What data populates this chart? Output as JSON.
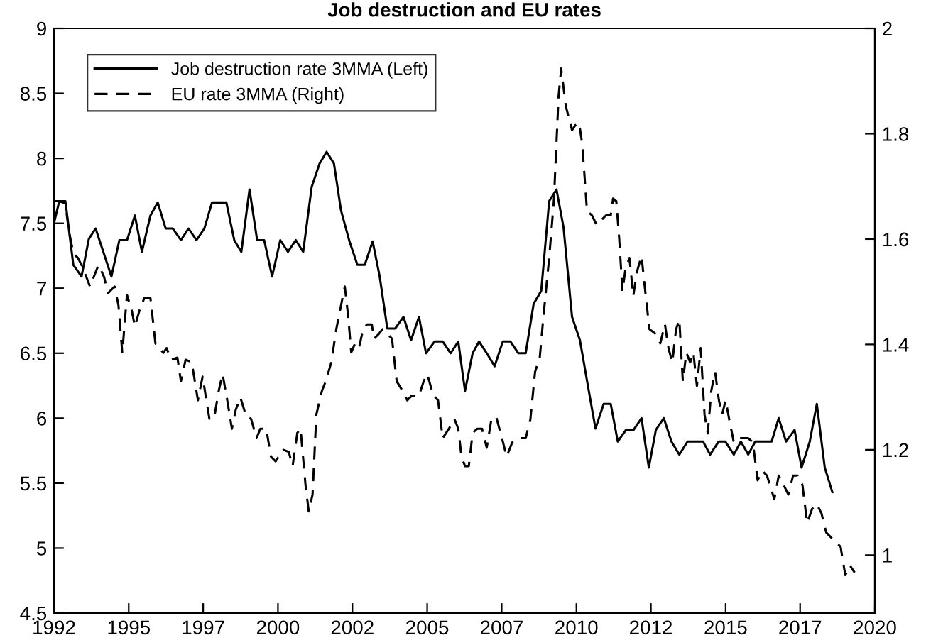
{
  "chart_data": {
    "type": "line",
    "title": "Job destruction and EU rates",
    "xlim": [
      1992,
      2020
    ],
    "xticks": [
      {
        "value": 1992,
        "label": "1992"
      },
      {
        "value": 1994.55,
        "label": "1995"
      },
      {
        "value": 1997.09,
        "label": "1997"
      },
      {
        "value": 1999.64,
        "label": "2000"
      },
      {
        "value": 2002.18,
        "label": "2002"
      },
      {
        "value": 2004.73,
        "label": "2005"
      },
      {
        "value": 2007.27,
        "label": "2007"
      },
      {
        "value": 2009.82,
        "label": "2010"
      },
      {
        "value": 2012.36,
        "label": "2012"
      },
      {
        "value": 2014.91,
        "label": "2015"
      },
      {
        "value": 2017.45,
        "label": "2017"
      },
      {
        "value": 2020,
        "label": "2020"
      }
    ],
    "ylim": [
      4.5,
      9
    ],
    "yticks": [
      4.5,
      5,
      5.5,
      6,
      6.5,
      7,
      7.5,
      8,
      8.5,
      9
    ],
    "y2lim": [
      0.89,
      2
    ],
    "y2ticks": [
      1,
      1.2,
      1.4,
      1.6,
      1.8,
      2
    ],
    "legend": "top left",
    "grid": false,
    "series": [
      {
        "name": "Job destruction rate 3MMA (Left)",
        "color": "#000000",
        "line_style": "solid",
        "x": [
          1992.0,
          1992.18,
          1992.39,
          1992.66,
          1992.94,
          1993.19,
          1993.42,
          1993.96,
          1994.23,
          1994.49,
          1994.76,
          1995.0,
          1995.29,
          1995.54,
          1995.81,
          1996.05,
          1996.33,
          1996.59,
          1996.86,
          1997.13,
          1997.39,
          1997.88,
          1998.15,
          1998.39,
          1998.67,
          1998.93,
          1999.17,
          1999.44,
          1999.72,
          1999.98,
          2000.25,
          2000.5,
          2000.79,
          2001.06,
          2001.3,
          2001.55,
          2001.79,
          2002.08,
          2002.35,
          2002.6,
          2002.87,
          2003.11,
          2003.37,
          2003.64,
          2003.92,
          2004.18,
          2004.45,
          2004.69,
          2004.98,
          2005.26,
          2005.53,
          2005.79,
          2006.02,
          2006.28,
          2006.5,
          2006.76,
          2007.03,
          2007.31,
          2007.57,
          2007.84,
          2008.09,
          2008.36,
          2008.62,
          2008.89,
          2009.14,
          2009.38,
          2009.67,
          2009.94,
          2010.18,
          2010.47,
          2010.75,
          2010.99,
          2011.23,
          2011.51,
          2011.77,
          2012.04,
          2012.29,
          2012.53,
          2012.8,
          2013.06,
          2013.33,
          2013.61,
          2014.14,
          2014.38,
          2014.67,
          2014.9,
          2015.19,
          2015.43,
          2015.68,
          2015.92,
          2016.48,
          2016.72,
          2016.97,
          2017.26,
          2017.5,
          2017.78,
          2018.02,
          2018.29,
          2018.55
        ],
        "values": [
          7.5,
          7.67,
          7.67,
          7.18,
          7.09,
          7.38,
          7.46,
          7.09,
          7.37,
          7.37,
          7.56,
          7.28,
          7.56,
          7.66,
          7.46,
          7.46,
          7.37,
          7.46,
          7.37,
          7.46,
          7.66,
          7.66,
          7.37,
          7.28,
          7.76,
          7.37,
          7.37,
          7.09,
          7.37,
          7.28,
          7.37,
          7.28,
          7.78,
          7.96,
          8.05,
          7.96,
          7.6,
          7.36,
          7.18,
          7.18,
          7.36,
          7.09,
          6.69,
          6.69,
          6.78,
          6.6,
          6.78,
          6.5,
          6.59,
          6.59,
          6.5,
          6.59,
          6.21,
          6.5,
          6.59,
          6.5,
          6.4,
          6.59,
          6.59,
          6.5,
          6.5,
          6.88,
          6.98,
          7.67,
          7.76,
          7.47,
          6.78,
          6.6,
          6.29,
          5.92,
          6.11,
          6.11,
          5.82,
          5.91,
          5.91,
          6.0,
          5.62,
          5.91,
          6.0,
          5.82,
          5.72,
          5.82,
          5.82,
          5.72,
          5.82,
          5.82,
          5.72,
          5.82,
          5.72,
          5.82,
          5.82,
          6.0,
          5.82,
          5.91,
          5.62,
          5.82,
          6.11,
          5.62,
          5.43
        ]
      },
      {
        "name": "EU rate 3MMA (Right)",
        "color": "#000000",
        "line_style": "dashed",
        "axis": "y2",
        "x": [
          1992.0,
          1992.18,
          1992.39,
          1992.5,
          1992.66,
          1992.82,
          1992.98,
          1993.23,
          1993.52,
          1993.71,
          1993.84,
          1994.07,
          1994.2,
          1994.33,
          1994.49,
          1994.65,
          1994.76,
          1994.92,
          1995.08,
          1995.29,
          1995.46,
          1995.73,
          1995.84,
          1996.0,
          1996.21,
          1996.33,
          1996.49,
          1996.7,
          1996.91,
          1997.07,
          1997.3,
          1997.46,
          1997.62,
          1997.75,
          1997.91,
          1998.07,
          1998.2,
          1998.36,
          1998.56,
          1998.72,
          1998.91,
          1999.04,
          1999.24,
          1999.4,
          1999.56,
          1999.82,
          2000.01,
          2000.14,
          2000.3,
          2000.41,
          2000.58,
          2000.69,
          2000.82,
          2000.95,
          2001.14,
          2001.27,
          2001.46,
          2001.63,
          2001.92,
          2002.03,
          2002.14,
          2002.27,
          2002.4,
          2002.51,
          2002.67,
          2002.84,
          2002.92,
          2003.08,
          2003.21,
          2003.37,
          2003.53,
          2003.69,
          2003.89,
          2004.05,
          2004.21,
          2004.45,
          2004.61,
          2004.73,
          2004.94,
          2005.1,
          2005.26,
          2005.47,
          2005.66,
          2005.79,
          2005.9,
          2006.02,
          2006.15,
          2006.28,
          2006.44,
          2006.6,
          2006.76,
          2006.92,
          2007.08,
          2007.28,
          2007.44,
          2007.63,
          2007.84,
          2008.09,
          2008.25,
          2008.41,
          2008.57,
          2008.7,
          2008.89,
          2009.05,
          2009.21,
          2009.3,
          2009.46,
          2009.67,
          2009.78,
          2009.91,
          2010.02,
          2010.18,
          2010.35,
          2010.51,
          2010.67,
          2010.83,
          2010.99,
          2011.07,
          2011.18,
          2011.28,
          2011.39,
          2011.5,
          2011.63,
          2011.76,
          2011.88,
          2012.04,
          2012.15,
          2012.31,
          2012.52,
          2012.68,
          2012.84,
          2012.96,
          2013.09,
          2013.22,
          2013.33,
          2013.45,
          2013.57,
          2013.7,
          2013.81,
          2013.93,
          2014.06,
          2014.19,
          2014.3,
          2014.42,
          2014.55,
          2014.68,
          2014.79,
          2014.91,
          2015.03,
          2015.19,
          2015.35,
          2015.51,
          2015.68,
          2015.84,
          2016.0,
          2016.16,
          2016.32,
          2016.57,
          2016.72,
          2016.89,
          2017.05,
          2017.21,
          2017.37,
          2017.53,
          2017.69,
          2017.86,
          2018.02,
          2018.18,
          2018.34,
          2018.5,
          2018.66,
          2018.83,
          2018.99,
          2019.07,
          2019.15,
          2019.31
        ],
        "values": [
          1.672,
          1.672,
          1.668,
          1.618,
          1.573,
          1.564,
          1.546,
          1.51,
          1.551,
          1.528,
          1.497,
          1.51,
          1.474,
          1.384,
          1.494,
          1.465,
          1.434,
          1.465,
          1.488,
          1.488,
          1.402,
          1.384,
          1.393,
          1.371,
          1.375,
          1.33,
          1.371,
          1.366,
          1.294,
          1.339,
          1.259,
          1.259,
          1.312,
          1.344,
          1.294,
          1.24,
          1.276,
          1.299,
          1.263,
          1.259,
          1.222,
          1.24,
          1.24,
          1.187,
          1.178,
          1.2,
          1.196,
          1.169,
          1.232,
          1.24,
          1.133,
          1.083,
          1.115,
          1.267,
          1.312,
          1.33,
          1.366,
          1.429,
          1.51,
          1.456,
          1.385,
          1.402,
          1.393,
          1.42,
          1.438,
          1.438,
          1.411,
          1.42,
          1.429,
          1.42,
          1.411,
          1.33,
          1.312,
          1.294,
          1.303,
          1.303,
          1.33,
          1.344,
          1.303,
          1.294,
          1.222,
          1.24,
          1.258,
          1.24,
          1.187,
          1.169,
          1.169,
          1.232,
          1.24,
          1.24,
          1.204,
          1.258,
          1.263,
          1.222,
          1.187,
          1.214,
          1.222,
          1.222,
          1.258,
          1.348,
          1.375,
          1.456,
          1.564,
          1.672,
          1.87,
          1.924,
          1.852,
          1.807,
          1.816,
          1.821,
          1.78,
          1.654,
          1.645,
          1.627,
          1.636,
          1.645,
          1.645,
          1.677,
          1.672,
          1.6,
          1.501,
          1.546,
          1.564,
          1.492,
          1.537,
          1.568,
          1.51,
          1.429,
          1.42,
          1.402,
          1.438,
          1.393,
          1.366,
          1.429,
          1.447,
          1.33,
          1.384,
          1.366,
          1.384,
          1.321,
          1.393,
          1.267,
          1.231,
          1.312,
          1.348,
          1.294,
          1.267,
          1.294,
          1.258,
          1.214,
          1.222,
          1.222,
          1.222,
          1.214,
          1.142,
          1.16,
          1.151,
          1.106,
          1.151,
          1.133,
          1.115,
          1.151,
          1.151,
          1.133,
          1.061,
          1.088,
          1.097,
          1.079,
          1.043,
          1.034,
          1.025,
          1.016,
          0.962,
          0.971,
          0.98,
          0.967
        ]
      }
    ]
  }
}
